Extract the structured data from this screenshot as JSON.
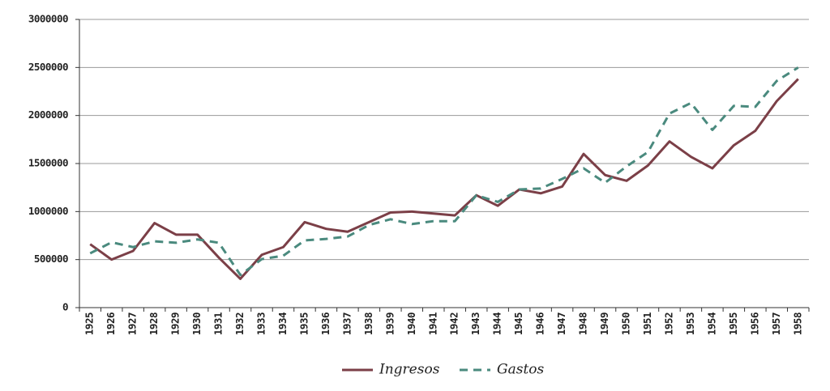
{
  "chart_data": {
    "type": "line",
    "categories": [
      "1925",
      "1926",
      "1927",
      "1928",
      "1929",
      "1930",
      "1931",
      "1932",
      "1933",
      "1934",
      "1935",
      "1936",
      "1937",
      "1938",
      "1939",
      "1940",
      "1941",
      "1942",
      "1943",
      "1944",
      "1945",
      "1946",
      "1947",
      "1948",
      "1949",
      "1950",
      "1951",
      "1952",
      "1953",
      "1954",
      "1955",
      "1956",
      "1957",
      "1958"
    ],
    "series": [
      {
        "name": "Ingresos",
        "color": "#7b3f47",
        "dashed": false,
        "values": [
          660000,
          500000,
          590000,
          880000,
          760000,
          760000,
          520000,
          300000,
          550000,
          630000,
          890000,
          820000,
          790000,
          890000,
          990000,
          1000000,
          980000,
          960000,
          1170000,
          1060000,
          1230000,
          1190000,
          1260000,
          1600000,
          1380000,
          1320000,
          1480000,
          1730000,
          1570000,
          1450000,
          1690000,
          1840000,
          2150000,
          2380000
        ]
      },
      {
        "name": "Gastos",
        "color": "#4a8a7e",
        "dashed": true,
        "values": [
          565000,
          680000,
          630000,
          690000,
          675000,
          710000,
          675000,
          340000,
          505000,
          540000,
          700000,
          715000,
          740000,
          860000,
          920000,
          870000,
          900000,
          900000,
          1170000,
          1100000,
          1230000,
          1240000,
          1340000,
          1450000,
          1300000,
          1470000,
          1620000,
          2020000,
          2130000,
          1850000,
          2100000,
          2090000,
          2360000,
          2500000
        ]
      }
    ],
    "ylim": [
      0,
      3000000
    ],
    "yticks": [
      0,
      500000,
      1000000,
      1500000,
      2000000,
      2500000,
      3000000
    ],
    "grid": true,
    "legend": "bottom"
  }
}
